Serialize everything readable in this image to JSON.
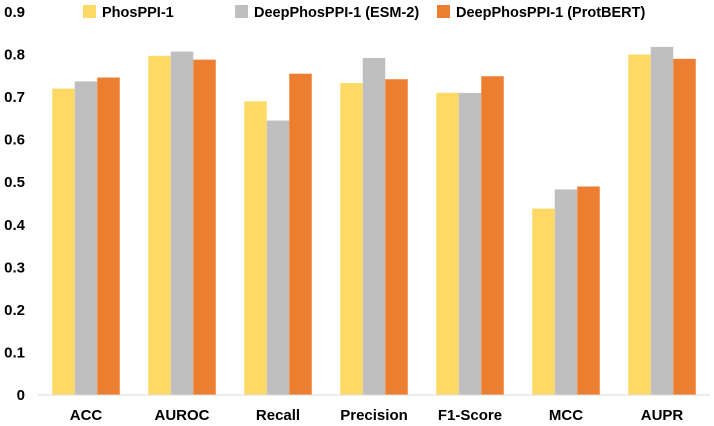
{
  "chart_data": {
    "type": "bar",
    "title": "",
    "xlabel": "",
    "ylabel": "",
    "ylim": [
      0,
      0.9
    ],
    "yticks": [
      "0",
      "0.1",
      "0.2",
      "0.3",
      "0.4",
      "0.5",
      "0.6",
      "0.7",
      "0.8",
      "0.9"
    ],
    "categories": [
      "ACC",
      "AUROC",
      "Recall",
      "Precision",
      "F1-Score",
      "MCC",
      "AUPR"
    ],
    "legend_position": "top",
    "grid": false,
    "series": [
      {
        "name": "PhosPPI-1",
        "color": "#FFD966",
        "values": [
          0.72,
          0.797,
          0.69,
          0.733,
          0.71,
          0.438,
          0.8
        ]
      },
      {
        "name": "DeepPhosPPI-1 (ESM-2)",
        "color": "#BFBFBF",
        "values": [
          0.737,
          0.807,
          0.645,
          0.792,
          0.71,
          0.483,
          0.818
        ]
      },
      {
        "name": "DeepPhosPPI-1 (ProtBERT)",
        "color": "#ED7D31",
        "values": [
          0.746,
          0.788,
          0.755,
          0.742,
          0.749,
          0.49,
          0.79
        ]
      }
    ]
  }
}
